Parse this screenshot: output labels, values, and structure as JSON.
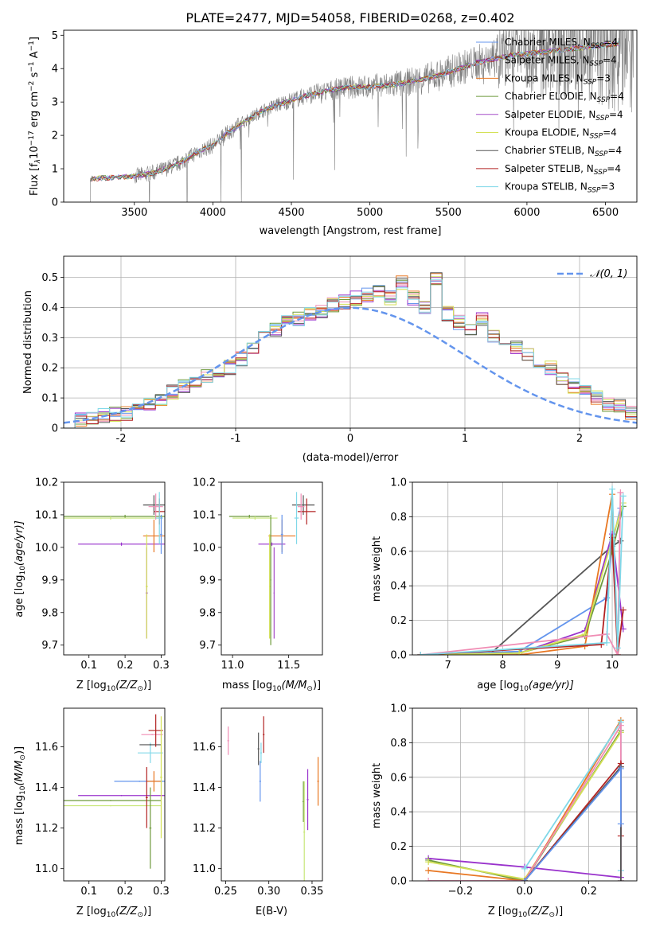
{
  "colors": {
    "Chabrier MILES": "#6495ed",
    "Salpeter MILES": "#9932cc",
    "Kroupa MILES": "#e87722",
    "Chabrier ELODIE": "#6e9a3c",
    "Salpeter ELODIE": "#a64dc8",
    "Kroupa ELODIE": "#d4e157",
    "Chabrier STELIB": "#555555",
    "Salpeter STELIB": "#b22222",
    "Kroupa STELIB": "#80d8e8",
    "pink": "#f08cb4",
    "yellowgreen": "#c8e678",
    "spectrum": "#808080",
    "normal": "#6495ed"
  },
  "chart_data": [
    {
      "id": "spectrum",
      "type": "line",
      "title": "PLATE=2477, MJD=54058, FIBERID=0268, z=0.402",
      "xlabel": "wavelength [Angstrom, rest frame]",
      "ylabel": "Flux [f",
      "ylabel_rest": "10",
      "ylabel_units": " erg cm",
      "xlim": [
        3050,
        6700
      ],
      "ylim": [
        0,
        5.15
      ],
      "xticks": [
        3500,
        4000,
        4500,
        5000,
        5500,
        6000,
        6500
      ],
      "yticks": [
        0,
        1,
        2,
        3,
        4,
        5
      ],
      "continuum_x": [
        3220,
        3300,
        3400,
        3500,
        3600,
        3700,
        3800,
        3900,
        4000,
        4100,
        4200,
        4300,
        4400,
        4500,
        4600,
        4700,
        4800,
        4900,
        5000,
        5100,
        5200,
        5300,
        5400,
        5500,
        5600,
        5700,
        5800,
        5900,
        6000,
        6100,
        6200,
        6300,
        6400,
        6500,
        6600
      ],
      "continuum_y": [
        0.7,
        0.72,
        0.75,
        0.78,
        0.85,
        1.0,
        1.2,
        1.5,
        1.7,
        2.1,
        2.4,
        2.7,
        2.9,
        3.05,
        3.2,
        3.3,
        3.4,
        3.45,
        3.45,
        3.5,
        3.55,
        3.65,
        3.75,
        3.9,
        4.05,
        4.2,
        4.3,
        4.4,
        4.45,
        4.5,
        4.55,
        4.6,
        4.65,
        4.7,
        4.75
      ],
      "series": [
        {
          "name": "Chabrier MILES, N",
          "sub": "SSP",
          "tail": "=4"
        },
        {
          "name": "Salpeter MILES, N",
          "sub": "SSP",
          "tail": "=4"
        },
        {
          "name": "Kroupa MILES, N",
          "sub": "SSP",
          "tail": "=3"
        },
        {
          "name": "Chabrier ELODIE, N",
          "sub": "SSP",
          "tail": "=4"
        },
        {
          "name": "Salpeter ELODIE, N",
          "sub": "SSP",
          "tail": "=4"
        },
        {
          "name": "Kroupa ELODIE, N",
          "sub": "SSP",
          "tail": "=4"
        },
        {
          "name": "Chabrier STELIB, N",
          "sub": "SSP",
          "tail": "=4"
        },
        {
          "name": "Salpeter STELIB, N",
          "sub": "SSP",
          "tail": "=4"
        },
        {
          "name": "Kroupa STELIB, N",
          "sub": "SSP",
          "tail": "=3"
        }
      ],
      "legend": "top-right"
    },
    {
      "id": "residuals",
      "type": "line",
      "xlabel": "(data-model)/error",
      "ylabel": "Normed distribution",
      "xlim": [
        -2.5,
        2.5
      ],
      "ylim": [
        0,
        0.57
      ],
      "xticks": [
        -2,
        -1,
        0,
        1,
        2
      ],
      "yticks": [
        0.0,
        0.1,
        0.2,
        0.3,
        0.4,
        0.5
      ],
      "grid": true,
      "legend_label": "𝒩(0, 1)",
      "legend": "top-right",
      "bins_start": -2.5,
      "bin_width": 0.1,
      "histogram": [
        0.02,
        0.03,
        0.035,
        0.04,
        0.045,
        0.05,
        0.06,
        0.08,
        0.1,
        0.12,
        0.14,
        0.15,
        0.17,
        0.18,
        0.2,
        0.23,
        0.26,
        0.3,
        0.33,
        0.35,
        0.36,
        0.38,
        0.39,
        0.41,
        0.42,
        0.43,
        0.44,
        0.45,
        0.43,
        0.48,
        0.43,
        0.4,
        0.5,
        0.38,
        0.35,
        0.33,
        0.36,
        0.3,
        0.28,
        0.27,
        0.25,
        0.22,
        0.2,
        0.16,
        0.14,
        0.12,
        0.1,
        0.08,
        0.07,
        0.05,
        0.04
      ]
    },
    {
      "id": "age-vs-Z",
      "type": "scatter",
      "xlabel": "Z [log",
      "xlabel_sub": "10",
      "xlabel_rest": "(Z/Z",
      "xlabel_end": ")]",
      "ylabel": "age  [log",
      "ylabel_sub": "10",
      "ylabel_rest": "(age/yr)]",
      "xlim": [
        0.03,
        0.31
      ],
      "ylim": [
        9.67,
        10.2
      ],
      "xticks": [
        0.1,
        0.2,
        0.3
      ],
      "xticklabels": [
        "0.1",
        "0.2",
        "0.3"
      ],
      "yticks": [
        9.7,
        9.8,
        9.9,
        10.0,
        10.1,
        10.2
      ],
      "yticklabels": [
        "9.7",
        "9.8",
        "9.9",
        "10.0",
        "10.1",
        "10.2"
      ],
      "points": [
        {
          "c": "#6e9a3c",
          "x": 0.2,
          "xe": 0.17,
          "y": 10.095,
          "ye": 0.005
        },
        {
          "c": "#c8e678",
          "x": 0.16,
          "xe": 0.14,
          "y": 10.09,
          "ye": 0.005
        },
        {
          "c": "#9932cc",
          "x": 0.19,
          "xe": 0.12,
          "y": 10.01,
          "ye": 0.005
        },
        {
          "c": "#e87722",
          "x": 0.28,
          "xe": 0.03,
          "y": 10.035,
          "ye": 0.05
        },
        {
          "c": "#555555",
          "x": 0.28,
          "xe": 0.03,
          "y": 10.13,
          "ye": 0.03
        },
        {
          "c": "#b22222",
          "x": 0.295,
          "xe": 0.015,
          "y": 10.11,
          "ye": 0.04
        },
        {
          "c": "#f08cb4",
          "x": 0.285,
          "xe": 0.02,
          "y": 10.125,
          "ye": 0.04
        },
        {
          "c": "#80d8e8",
          "x": 0.295,
          "xe": 0.01,
          "y": 10.09,
          "ye": 0.08
        },
        {
          "c": "#6495ed",
          "x": 0.3,
          "xe": 0.003,
          "y": 10.04,
          "ye": 0.06
        },
        {
          "c": "#a64dc8",
          "x": 0.26,
          "xe": 0.003,
          "y": 9.86,
          "ye": 0.14
        },
        {
          "c": "#d4e157",
          "x": 0.26,
          "xe": 0.003,
          "y": 9.88,
          "ye": 0.16
        }
      ]
    },
    {
      "id": "age-vs-mass",
      "type": "scatter",
      "xlabel": "mass [log",
      "xlabel_sub": "10",
      "xlabel_rest": "(M/M",
      "xlabel_end": ")]",
      "xlim": [
        10.9,
        11.8
      ],
      "ylim": [
        9.67,
        10.2
      ],
      "xticks": [
        11.0,
        11.5
      ],
      "xticklabels": [
        "11.0",
        "11.5"
      ],
      "yticks": [
        9.7,
        9.8,
        9.9,
        10.0,
        10.1,
        10.2
      ],
      "yticklabels": [
        "9.7",
        "9.8",
        "9.9",
        "10.0",
        "10.1",
        "10.2"
      ],
      "points": [
        {
          "c": "#6e9a3c",
          "x": 11.15,
          "xe": 0.18,
          "y": 10.095,
          "ye": 0.005
        },
        {
          "c": "#c8e678",
          "x": 11.2,
          "xe": 0.2,
          "y": 10.09,
          "ye": 0.005
        },
        {
          "c": "#9932cc",
          "x": 11.35,
          "xe": 0.12,
          "y": 10.01,
          "ye": 0.005
        },
        {
          "c": "#e87722",
          "x": 11.44,
          "xe": 0.12,
          "y": 10.035,
          "ye": 0.05
        },
        {
          "c": "#555555",
          "x": 11.63,
          "xe": 0.1,
          "y": 10.13,
          "ye": 0.03
        },
        {
          "c": "#b22222",
          "x": 11.66,
          "xe": 0.08,
          "y": 10.11,
          "ye": 0.04
        },
        {
          "c": "#f08cb4",
          "x": 11.61,
          "xe": 0.03,
          "y": 10.125,
          "ye": 0.04
        },
        {
          "c": "#80d8e8",
          "x": 11.57,
          "xe": 0.02,
          "y": 10.09,
          "ye": 0.08
        },
        {
          "c": "#6495ed",
          "x": 11.44,
          "xe": 0.01,
          "y": 10.04,
          "ye": 0.06
        },
        {
          "c": "#a64dc8",
          "x": 11.37,
          "xe": 0.005,
          "y": 9.86,
          "ye": 0.14
        },
        {
          "c": "#d4e157",
          "x": 11.33,
          "xe": 0.005,
          "y": 9.88,
          "ye": 0.16
        },
        {
          "c": "#6e9a3c",
          "x": 11.34,
          "xe": 0.005,
          "y": 9.9,
          "ye": 0.2
        }
      ]
    },
    {
      "id": "massweight-vs-age",
      "type": "line",
      "xlabel": "age  [log",
      "xlabel_sub": "10",
      "xlabel_rest": "(age/yr)]",
      "ylabel": "mass weight",
      "xlim": [
        6.35,
        10.45
      ],
      "ylim": [
        0,
        1
      ],
      "xticks": [
        7,
        8,
        9,
        10
      ],
      "xticklabels": [
        "7",
        "8",
        "9",
        "10"
      ],
      "yticks": [
        0,
        0.2,
        0.4,
        0.6,
        0.8,
        1.0
      ],
      "yticklabels": [
        "0.0",
        "0.2",
        "0.4",
        "0.6",
        "0.8",
        "1.0"
      ],
      "grid": true,
      "lines": [
        {
          "c": "#555555",
          "x": [
            7.75,
            10.0,
            10.15
          ],
          "y": [
            0.0,
            0.63,
            0.66
          ]
        },
        {
          "c": "#6495ed",
          "x": [
            6.5,
            8.3,
            9.9,
            10.0,
            10.15
          ],
          "y": [
            0.0,
            0.02,
            0.33,
            0.65,
            0.85
          ]
        },
        {
          "c": "#9932cc",
          "x": [
            6.5,
            8.3,
            9.5,
            10.0,
            10.2
          ],
          "y": [
            0.0,
            0.01,
            0.14,
            0.7,
            0.15
          ]
        },
        {
          "c": "#e87722",
          "x": [
            6.5,
            8.3,
            9.5,
            10.0,
            10.1
          ],
          "y": [
            0.0,
            0.0,
            0.05,
            0.93,
            0.0
          ]
        },
        {
          "c": "#6e9a3c",
          "x": [
            6.5,
            8.3,
            9.5,
            10.0,
            10.2
          ],
          "y": [
            0.0,
            0.01,
            0.11,
            0.6,
            0.86
          ]
        },
        {
          "c": "#d4e157",
          "x": [
            6.5,
            8.3,
            9.5,
            10.0,
            10.2
          ],
          "y": [
            0.0,
            0.01,
            0.12,
            0.67,
            0.88
          ]
        },
        {
          "c": "#b22222",
          "x": [
            6.5,
            9.8,
            10.0,
            10.1,
            10.2
          ],
          "y": [
            0.0,
            0.06,
            0.68,
            0.0,
            0.26
          ]
        },
        {
          "c": "#f08cb4",
          "x": [
            6.5,
            9.9,
            10.1,
            10.15
          ],
          "y": [
            0.0,
            0.12,
            0.0,
            0.94
          ]
        },
        {
          "c": "#80d8e8",
          "x": [
            6.5,
            9.9,
            10.0,
            10.1,
            10.2
          ],
          "y": [
            0.0,
            0.07,
            0.96,
            0.04,
            0.92
          ]
        }
      ]
    },
    {
      "id": "mass-vs-Z",
      "type": "scatter",
      "xlabel": "Z [log",
      "xlabel_sub": "10",
      "xlabel_rest": "(Z/Z",
      "xlabel_end": ")]",
      "ylabel": "mass [log",
      "ylabel_sub": "10",
      "ylabel_rest": "(M/M",
      "ylabel_end": ")]",
      "xlim": [
        0.03,
        0.31
      ],
      "ylim": [
        10.94,
        11.79
      ],
      "xticks": [
        0.1,
        0.2,
        0.3
      ],
      "xticklabels": [
        "0.1",
        "0.2",
        "0.3"
      ],
      "yticks": [
        11.0,
        11.2,
        11.4,
        11.6
      ],
      "yticklabels": [
        "11.0",
        "11.2",
        "11.4",
        "11.6"
      ],
      "points": [
        {
          "c": "#c8e678",
          "x": 0.16,
          "xe": 0.14,
          "y": 11.31,
          "ye": 0.003
        },
        {
          "c": "#6e9a3c",
          "x": 0.16,
          "xe": 0.14,
          "y": 11.335,
          "ye": 0.003
        },
        {
          "c": "#9932cc",
          "x": 0.19,
          "xe": 0.12,
          "y": 11.36,
          "ye": 0.003
        },
        {
          "c": "#6495ed",
          "x": 0.24,
          "xe": 0.07,
          "y": 11.43,
          "ye": 0.003
        },
        {
          "c": "#e87722",
          "x": 0.28,
          "xe": 0.02,
          "y": 11.43,
          "ye": 0.05
        },
        {
          "c": "#80d8e8",
          "x": 0.27,
          "xe": 0.035,
          "y": 11.57,
          "ye": 0.05
        },
        {
          "c": "#555555",
          "x": 0.27,
          "xe": 0.03,
          "y": 11.61,
          "ye": 0.003
        },
        {
          "c": "#f08cb4",
          "x": 0.275,
          "xe": 0.03,
          "y": 11.66,
          "ye": 0.003
        },
        {
          "c": "#b22222",
          "x": 0.285,
          "xe": 0.02,
          "y": 11.68,
          "ye": 0.08
        },
        {
          "c": "#6e9a3c",
          "x": 0.27,
          "xe": 0.003,
          "y": 11.2,
          "ye": 0.2
        },
        {
          "c": "#b22222",
          "x": 0.26,
          "xe": 0.003,
          "y": 11.35,
          "ye": 0.15
        },
        {
          "c": "#d4e157",
          "x": 0.3,
          "xe": 0.003,
          "y": 11.45,
          "ye": 0.3
        }
      ]
    },
    {
      "id": "mass-vs-EBV",
      "type": "scatter",
      "xlabel": "E(B-V)",
      "xlim": [
        0.245,
        0.362
      ],
      "ylim": [
        10.94,
        11.79
      ],
      "xticks": [
        0.25,
        0.3,
        0.35
      ],
      "xticklabels": [
        "0.25",
        "0.30",
        "0.35"
      ],
      "yticks": [
        11.0,
        11.2,
        11.4,
        11.6
      ],
      "yticklabels": [
        "11.0",
        "11.2",
        "11.4",
        "11.6"
      ],
      "points": [
        {
          "c": "#f08cb4",
          "x": 0.253,
          "xe": 0.001,
          "y": 11.63,
          "ye": 0.07
        },
        {
          "c": "#555555",
          "x": 0.288,
          "xe": 0.001,
          "y": 11.59,
          "ye": 0.08
        },
        {
          "c": "#6495ed",
          "x": 0.29,
          "xe": 0.001,
          "y": 11.43,
          "ye": 0.1
        },
        {
          "c": "#80d8e8",
          "x": 0.291,
          "xe": 0.001,
          "y": 11.57,
          "ye": 0.05
        },
        {
          "c": "#b22222",
          "x": 0.294,
          "xe": 0.001,
          "y": 11.66,
          "ye": 0.09
        },
        {
          "c": "#6e9a3c",
          "x": 0.34,
          "xe": 0.001,
          "y": 11.33,
          "ye": 0.1
        },
        {
          "c": "#c8e678",
          "x": 0.341,
          "xe": 0.001,
          "y": 11.18,
          "ye": 0.25
        },
        {
          "c": "#9932cc",
          "x": 0.345,
          "xe": 0.001,
          "y": 11.34,
          "ye": 0.15
        },
        {
          "c": "#e87722",
          "x": 0.357,
          "xe": 0.001,
          "y": 11.43,
          "ye": 0.12
        }
      ]
    },
    {
      "id": "massweight-vs-Z",
      "type": "line",
      "xlabel": "Z [log",
      "xlabel_sub": "10",
      "xlabel_rest": "(Z/Z",
      "xlabel_end": ")]",
      "ylabel": "mass weight",
      "xlim": [
        -0.35,
        0.35
      ],
      "ylim": [
        0,
        1
      ],
      "xticks": [
        -0.2,
        0.0,
        0.2
      ],
      "xticklabels": [
        "−0.2",
        "0.0",
        "0.2"
      ],
      "yticks": [
        0,
        0.2,
        0.4,
        0.6,
        0.8,
        1.0
      ],
      "yticklabels": [
        "0.0",
        "0.2",
        "0.4",
        "0.6",
        "0.8",
        "1.0"
      ],
      "grid": true,
      "lines": [
        {
          "c": "#9932cc",
          "x": [
            -0.3,
            0.0,
            0.3
          ],
          "y": [
            0.13,
            0.08,
            0.02
          ]
        },
        {
          "c": "#6e9a3c",
          "x": [
            -0.3,
            0.0,
            0.3
          ],
          "y": [
            0.12,
            0.0,
            0.87
          ]
        },
        {
          "c": "#d4e157",
          "x": [
            -0.3,
            0.0,
            0.3
          ],
          "y": [
            0.11,
            0.01,
            0.86
          ]
        },
        {
          "c": "#e87722",
          "x": [
            -0.3,
            0.0,
            0.3
          ],
          "y": [
            0.06,
            0.0,
            0.93
          ]
        },
        {
          "c": "#80d8e8",
          "x": [
            0.0,
            0.3,
            0.3
          ],
          "y": [
            0.07,
            0.92,
            0.06
          ]
        },
        {
          "c": "#f08cb4",
          "x": [
            -0.3,
            0.0,
            0.3,
            0.3
          ],
          "y": [
            0.0,
            0.0,
            0.9,
            0.0
          ]
        },
        {
          "c": "#b22222",
          "x": [
            0.0,
            0.3,
            0.3
          ],
          "y": [
            0.0,
            0.68,
            0.26
          ]
        },
        {
          "c": "#555555",
          "x": [
            0.0,
            0.3,
            0.3
          ],
          "y": [
            0.0,
            0.66,
            0.0
          ]
        },
        {
          "c": "#6495ed",
          "x": [
            0.0,
            0.3,
            0.3
          ],
          "y": [
            0.0,
            0.65,
            0.33
          ]
        }
      ]
    }
  ]
}
